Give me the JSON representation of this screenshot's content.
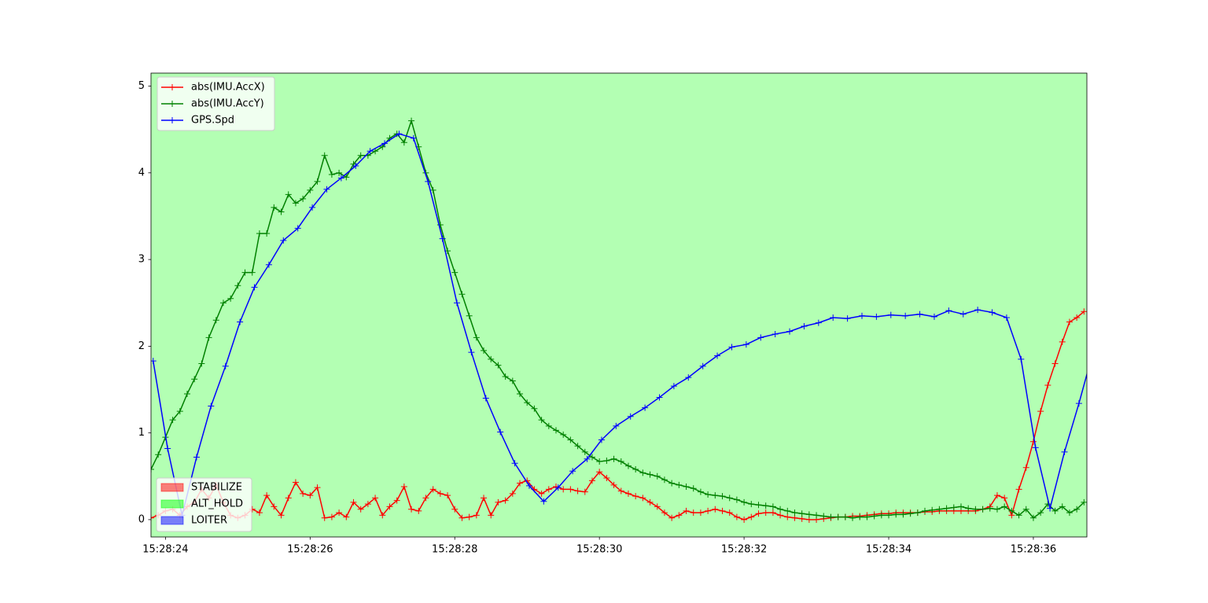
{
  "chart_data": {
    "type": "line",
    "background": "#b3ffb3",
    "xlim": [
      23.8,
      36.74
    ],
    "ylim": [
      -0.2,
      5.15
    ],
    "xticks": [
      {
        "value": 24,
        "label": "15:28:24"
      },
      {
        "value": 26,
        "label": "15:28:26"
      },
      {
        "value": 28,
        "label": "15:28:28"
      },
      {
        "value": 30,
        "label": "15:28:30"
      },
      {
        "value": 32,
        "label": "15:28:32"
      },
      {
        "value": 34,
        "label": "15:28:34"
      },
      {
        "value": 36,
        "label": "15:28:36"
      }
    ],
    "yticks": [
      0,
      1,
      2,
      3,
      4,
      5
    ],
    "series": [
      {
        "name": "abs(IMU.AccX)",
        "color": "#ff0000",
        "x": [
          23.8,
          23.9,
          24.0,
          24.1,
          24.2,
          24.3,
          24.4,
          24.5,
          24.6,
          24.7,
          24.8,
          24.9,
          25.0,
          25.1,
          25.2,
          25.3,
          25.4,
          25.5,
          25.6,
          25.7,
          25.8,
          25.9,
          26.0,
          26.1,
          26.2,
          26.3,
          26.4,
          26.5,
          26.6,
          26.7,
          26.8,
          26.9,
          27.0,
          27.1,
          27.2,
          27.3,
          27.4,
          27.5,
          27.6,
          27.7,
          27.8,
          27.9,
          28.0,
          28.1,
          28.2,
          28.3,
          28.4,
          28.5,
          28.6,
          28.7,
          28.8,
          28.9,
          29.0,
          29.1,
          29.2,
          29.3,
          29.4,
          29.5,
          29.6,
          29.7,
          29.8,
          29.9,
          30.0,
          30.1,
          30.2,
          30.3,
          30.4,
          30.5,
          30.6,
          30.7,
          30.8,
          30.9,
          31.0,
          31.1,
          31.2,
          31.3,
          31.4,
          31.5,
          31.6,
          31.7,
          31.8,
          31.9,
          32.0,
          32.1,
          32.2,
          32.3,
          32.4,
          32.5,
          32.6,
          32.7,
          32.8,
          32.9,
          33.0,
          33.1,
          33.2,
          33.3,
          33.4,
          33.5,
          33.6,
          33.7,
          33.8,
          33.9,
          34.0,
          34.1,
          34.2,
          34.3,
          34.4,
          34.5,
          34.6,
          34.7,
          34.8,
          34.9,
          35.0,
          35.1,
          35.2,
          35.3,
          35.4,
          35.5,
          35.6,
          35.7,
          35.8,
          35.9,
          36.0,
          36.1,
          36.2,
          36.3,
          36.4,
          36.5,
          36.6,
          36.7
        ],
        "values": [
          0.02,
          0.05,
          0.1,
          0.12,
          0.05,
          0.15,
          0.2,
          0.35,
          0.25,
          0.4,
          0.2,
          0.05,
          0.02,
          0.05,
          0.12,
          0.08,
          0.28,
          0.15,
          0.05,
          0.25,
          0.43,
          0.3,
          0.28,
          0.37,
          0.02,
          0.03,
          0.08,
          0.03,
          0.2,
          0.12,
          0.18,
          0.25,
          0.05,
          0.15,
          0.22,
          0.38,
          0.12,
          0.1,
          0.25,
          0.35,
          0.3,
          0.28,
          0.12,
          0.02,
          0.03,
          0.05,
          0.25,
          0.05,
          0.2,
          0.22,
          0.3,
          0.42,
          0.45,
          0.35,
          0.3,
          0.35,
          0.38,
          0.35,
          0.35,
          0.33,
          0.32,
          0.45,
          0.55,
          0.48,
          0.4,
          0.33,
          0.3,
          0.27,
          0.25,
          0.2,
          0.15,
          0.08,
          0.02,
          0.05,
          0.1,
          0.08,
          0.08,
          0.1,
          0.12,
          0.1,
          0.08,
          0.03,
          0.0,
          0.03,
          0.07,
          0.08,
          0.08,
          0.05,
          0.03,
          0.02,
          0.01,
          0.0,
          0.0,
          0.01,
          0.02,
          0.03,
          0.03,
          0.04,
          0.04,
          0.05,
          0.06,
          0.07,
          0.07,
          0.08,
          0.08,
          0.08,
          0.08,
          0.09,
          0.09,
          0.1,
          0.1,
          0.1,
          0.1,
          0.1,
          0.1,
          0.12,
          0.15,
          0.28,
          0.25,
          0.05,
          0.35,
          0.6,
          0.9,
          1.25,
          1.55,
          1.8,
          2.05,
          2.28,
          2.33,
          2.4
        ]
      },
      {
        "name": "abs(IMU.AccY)",
        "color": "#008000",
        "x": [
          23.8,
          23.9,
          24.0,
          24.1,
          24.2,
          24.3,
          24.4,
          24.5,
          24.6,
          24.7,
          24.8,
          24.9,
          25.0,
          25.1,
          25.2,
          25.3,
          25.4,
          25.5,
          25.6,
          25.7,
          25.8,
          25.9,
          26.0,
          26.1,
          26.2,
          26.3,
          26.4,
          26.5,
          26.6,
          26.7,
          26.8,
          26.9,
          27.0,
          27.1,
          27.2,
          27.3,
          27.4,
          27.5,
          27.6,
          27.7,
          27.8,
          27.9,
          28.0,
          28.1,
          28.2,
          28.3,
          28.4,
          28.5,
          28.6,
          28.7,
          28.8,
          28.9,
          29.0,
          29.1,
          29.2,
          29.3,
          29.4,
          29.5,
          29.6,
          29.7,
          29.8,
          29.9,
          30.0,
          30.1,
          30.2,
          30.3,
          30.4,
          30.5,
          30.6,
          30.7,
          30.8,
          30.9,
          31.0,
          31.1,
          31.2,
          31.3,
          31.4,
          31.5,
          31.6,
          31.7,
          31.8,
          31.9,
          32.0,
          32.1,
          32.2,
          32.3,
          32.4,
          32.5,
          32.6,
          32.7,
          32.8,
          32.9,
          33.0,
          33.1,
          33.2,
          33.3,
          33.4,
          33.5,
          33.6,
          33.7,
          33.8,
          33.9,
          34.0,
          34.1,
          34.2,
          34.3,
          34.4,
          34.5,
          34.6,
          34.7,
          34.8,
          34.9,
          35.0,
          35.1,
          35.2,
          35.3,
          35.4,
          35.5,
          35.6,
          35.7,
          35.8,
          35.9,
          36.0,
          36.1,
          36.2,
          36.3,
          36.4,
          36.5,
          36.6,
          36.7
        ],
        "values": [
          0.58,
          0.75,
          0.95,
          1.15,
          1.25,
          1.45,
          1.62,
          1.8,
          2.1,
          2.3,
          2.5,
          2.55,
          2.7,
          2.85,
          2.85,
          3.3,
          3.3,
          3.6,
          3.55,
          3.75,
          3.65,
          3.7,
          3.8,
          3.9,
          4.2,
          3.98,
          4.0,
          3.95,
          4.1,
          4.2,
          4.2,
          4.25,
          4.3,
          4.4,
          4.45,
          4.35,
          4.6,
          4.3,
          4.0,
          3.8,
          3.4,
          3.1,
          2.85,
          2.6,
          2.35,
          2.1,
          1.95,
          1.85,
          1.78,
          1.65,
          1.6,
          1.45,
          1.35,
          1.28,
          1.15,
          1.08,
          1.03,
          0.98,
          0.92,
          0.85,
          0.78,
          0.72,
          0.67,
          0.68,
          0.7,
          0.67,
          0.62,
          0.58,
          0.54,
          0.52,
          0.5,
          0.46,
          0.42,
          0.4,
          0.38,
          0.36,
          0.32,
          0.29,
          0.28,
          0.27,
          0.25,
          0.23,
          0.2,
          0.18,
          0.17,
          0.16,
          0.15,
          0.12,
          0.1,
          0.08,
          0.07,
          0.06,
          0.05,
          0.04,
          0.03,
          0.03,
          0.03,
          0.02,
          0.03,
          0.03,
          0.04,
          0.05,
          0.05,
          0.06,
          0.06,
          0.07,
          0.08,
          0.1,
          0.11,
          0.12,
          0.13,
          0.14,
          0.15,
          0.13,
          0.12,
          0.12,
          0.13,
          0.12,
          0.15,
          0.1,
          0.05,
          0.12,
          0.02,
          0.08,
          0.18,
          0.1,
          0.15,
          0.08,
          0.12,
          0.2
        ]
      },
      {
        "name": "GPS.Spd",
        "color": "#0000ff",
        "x": [
          23.83,
          24.03,
          24.23,
          24.43,
          24.63,
          24.83,
          25.03,
          25.23,
          25.43,
          25.63,
          25.83,
          26.03,
          26.23,
          26.43,
          26.63,
          26.83,
          27.03,
          27.23,
          27.43,
          27.63,
          27.83,
          28.03,
          28.23,
          28.43,
          28.63,
          28.83,
          29.03,
          29.23,
          29.43,
          29.63,
          29.83,
          30.03,
          30.23,
          30.43,
          30.63,
          30.83,
          31.03,
          31.23,
          31.43,
          31.63,
          31.83,
          32.03,
          32.23,
          32.43,
          32.63,
          32.83,
          33.03,
          33.23,
          33.43,
          33.63,
          33.83,
          34.03,
          34.23,
          34.43,
          34.63,
          34.83,
          35.03,
          35.23,
          35.43,
          35.63,
          35.83,
          36.03,
          36.23,
          36.43,
          36.63,
          36.83
        ],
        "values": [
          1.83,
          0.82,
          0.05,
          0.72,
          1.31,
          1.77,
          2.28,
          2.68,
          2.94,
          3.22,
          3.36,
          3.6,
          3.81,
          3.94,
          4.08,
          4.25,
          4.34,
          4.45,
          4.4,
          3.9,
          3.24,
          2.5,
          1.93,
          1.4,
          1.01,
          0.65,
          0.39,
          0.21,
          0.37,
          0.56,
          0.7,
          0.92,
          1.08,
          1.19,
          1.29,
          1.41,
          1.54,
          1.64,
          1.77,
          1.89,
          1.99,
          2.02,
          2.1,
          2.14,
          2.17,
          2.23,
          2.27,
          2.33,
          2.32,
          2.35,
          2.34,
          2.36,
          2.35,
          2.37,
          2.34,
          2.41,
          2.37,
          2.42,
          2.39,
          2.33,
          1.85,
          0.83,
          0.13,
          0.78,
          1.34,
          1.95
        ]
      }
    ],
    "modes": [
      {
        "name": "STABILIZE",
        "color": "#ff0000"
      },
      {
        "name": "ALT_HOLD",
        "color": "#00ff00"
      },
      {
        "name": "LOITER",
        "color": "#0000ff"
      }
    ]
  }
}
